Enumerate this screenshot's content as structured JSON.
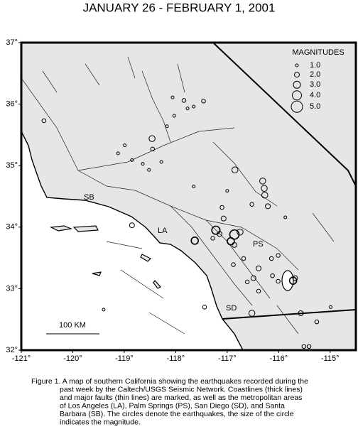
{
  "title": "JANUARY 26 - FEBRUARY 1, 2001",
  "map": {
    "xlim": [
      -121,
      -114.5
    ],
    "ylim": [
      32,
      37
    ],
    "xticks": [
      {
        "value": -121,
        "label": "-121°"
      },
      {
        "value": -120,
        "label": "-120°"
      },
      {
        "value": -119,
        "label": "-119°"
      },
      {
        "value": -118,
        "label": "-118°"
      },
      {
        "value": -117,
        "label": "-117°"
      },
      {
        "value": -116,
        "label": "-116°"
      },
      {
        "value": -115,
        "label": "-115°"
      }
    ],
    "yticks": [
      {
        "value": 32,
        "label": "32°"
      },
      {
        "value": 33,
        "label": "33°"
      },
      {
        "value": 34,
        "label": "34°"
      },
      {
        "value": 35,
        "label": "35°"
      },
      {
        "value": 36,
        "label": "36°"
      },
      {
        "value": 37,
        "label": "37°"
      }
    ]
  },
  "legend": {
    "title": "MAGNITUDES",
    "entries": [
      {
        "value": 1,
        "label": "1.0"
      },
      {
        "value": 2,
        "label": "2.0"
      },
      {
        "value": 3,
        "label": "3.0"
      },
      {
        "value": 4,
        "label": "4.0"
      },
      {
        "value": 5,
        "label": "5.0"
      }
    ]
  },
  "places": [
    "SB",
    "LA",
    "PS",
    "SD"
  ],
  "scale_bar": "100 KM",
  "events": [
    [
      -120.56,
      35.73,
      1.5
    ],
    [
      -118.06,
      36.11,
      1
    ],
    [
      -117.84,
      36.06,
      1.5
    ],
    [
      -117.77,
      35.93,
      1
    ],
    [
      -117.65,
      35.96,
      1
    ],
    [
      -117.46,
      36.05,
      1.5
    ],
    [
      -118.46,
      35.44,
      2.5
    ],
    [
      -118.45,
      35.27,
      1.5
    ],
    [
      -118.85,
      35.09,
      1
    ],
    [
      -118.52,
      34.93,
      1
    ],
    [
      -116.85,
      34.93,
      2.5
    ],
    [
      -116.31,
      34.75,
      2.5
    ],
    [
      -116.28,
      34.63,
      2.5
    ],
    [
      -116.27,
      34.52,
      2.5
    ],
    [
      -116.21,
      34.34,
      2
    ],
    [
      -116.52,
      34.37,
      1.5
    ],
    [
      -117.22,
      33.95,
      3.5
    ],
    [
      -117.15,
      33.89,
      2
    ],
    [
      -116.93,
      33.77,
      3
    ],
    [
      -116.86,
      33.88,
      4
    ],
    [
      -116.86,
      33.71,
      2
    ],
    [
      -116.88,
      33.39,
      1.5
    ],
    [
      -116.49,
      33.17,
      2
    ],
    [
      -116.52,
      32.6,
      2.5
    ],
    [
      -116.39,
      33.33,
      2
    ],
    [
      -116.12,
      33.21,
      1.5
    ],
    [
      -116.01,
      33.12,
      1.5
    ],
    [
      -115.72,
      33.13,
      3
    ],
    [
      -115.68,
      33.17,
      2
    ],
    [
      -115.57,
      32.6,
      2
    ],
    [
      -115.26,
      32.46,
      1.5
    ],
    [
      -115.51,
      32.06,
      1.5
    ],
    [
      -115.41,
      32.06,
      1.5
    ],
    [
      -117.44,
      32.7,
      1.5
    ],
    [
      -117.63,
      33.78,
      3
    ],
    [
      -118.85,
      34.03,
      2
    ],
    [
      -117.65,
      34.66,
      1
    ],
    [
      -117.1,
      34.32,
      1.5
    ],
    [
      -117.0,
      34.59,
      1
    ],
    [
      -114.99,
      32.7,
      1
    ],
    [
      -115.87,
      34.16,
      1
    ],
    [
      -116.75,
      33.92,
      2.5
    ],
    [
      -117.07,
      34.14,
      2
    ],
    [
      -117.28,
      33.82,
      1.5
    ],
    [
      -116.61,
      33.11,
      1.5
    ],
    [
      -116.39,
      32.96,
      1.5
    ],
    [
      -116.68,
      33.49,
      1.5
    ],
    [
      -118.64,
      35.03,
      1
    ],
    [
      -118.28,
      35.06,
      1
    ],
    [
      -119.12,
      35.2,
      1
    ],
    [
      -118.99,
      35.33,
      1
    ],
    [
      -118.03,
      35.81,
      1
    ],
    [
      -118.17,
      35.64,
      1
    ],
    [
      -116.01,
      33.54,
      1.5
    ],
    [
      -116.14,
      33.49,
      1.5
    ],
    [
      -119.4,
      32.66,
      1
    ]
  ],
  "caption": [
    "Figure 1.  A map of southern California showing the earthquakes recorded during the",
    "past week by the Caltech/USGS Seismic Network.  Coastlines (thick lines)",
    "and major faults (thin lines) are marked, as well as the metropolitan areas",
    "of Los Angeles (LA), Palm Springs (PS), San Diego (SD), and Santa",
    "Barbara (SB).  The circles denote the earthquakes, the size of the circle",
    "indicates the magnitude."
  ]
}
